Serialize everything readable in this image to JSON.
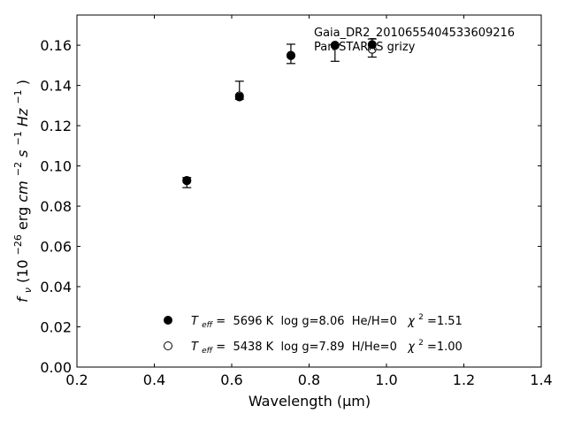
{
  "chart_data": {
    "type": "scatter",
    "title": "",
    "xlabel": "Wavelength (μm)",
    "ylabel_parts": {
      "f_main": "f",
      "f_sub": "ν",
      "open": " (10",
      "exp1": "−26",
      "erg": " erg ",
      "cm": "cm",
      "exp2": "−2",
      "s": " s",
      "exp3": "−1",
      "hz": " Hz",
      "exp4": "−1",
      "close": ")"
    },
    "xlim": [
      0.2,
      1.4
    ],
    "ylim": [
      0.0,
      0.175
    ],
    "xticks": [
      0.2,
      0.4,
      0.6,
      0.8,
      1.0,
      1.2,
      1.4
    ],
    "xtick_labels": [
      "0.2",
      "0.4",
      "0.6",
      "0.8",
      "1.0",
      "1.2",
      "1.4"
    ],
    "yticks": [
      0.0,
      0.02,
      0.04,
      0.06,
      0.08,
      0.1,
      0.12,
      0.14,
      0.16
    ],
    "ytick_labels": [
      "0.00",
      "0.02",
      "0.04",
      "0.06",
      "0.08",
      "0.10",
      "0.12",
      "0.14",
      "0.16"
    ],
    "grid": false,
    "annotation": {
      "line1": "Gaia_DR2_2010655404533609216",
      "line2": "Pan-STARRS grizy"
    },
    "observed": {
      "x": [
        0.484,
        0.62,
        0.753,
        0.867,
        0.963
      ],
      "y": [
        0.0917,
        0.1376,
        0.1557,
        0.1562,
        0.1586
      ],
      "err": [
        0.0025,
        0.0045,
        0.0048,
        0.0042,
        0.0045
      ]
    },
    "series": [
      {
        "marker": "filled",
        "x": [
          0.484,
          0.62,
          0.753,
          0.867,
          0.963
        ],
        "y": [
          0.0928,
          0.1343,
          0.155,
          0.16,
          0.1603
        ]
      },
      {
        "marker": "open",
        "x": [
          0.484,
          0.62,
          0.753,
          0.867,
          0.963
        ],
        "y": [
          0.0926,
          0.1348,
          0.1548,
          0.1599,
          0.158
        ]
      }
    ],
    "legend": {
      "location": "lower-center",
      "entries": [
        {
          "marker": "filled",
          "teff_T": "T",
          "teff_sub": "eff",
          "text1": "=  5696 K  log g=8.06  He/H=0  ",
          "chi": "χ",
          "chi_exp": "2",
          "text2": "=1.51"
        },
        {
          "marker": "open",
          "teff_T": "T",
          "teff_sub": "eff",
          "text1": "=  5438 K  log g=7.89  H/He=0  ",
          "chi": "χ",
          "chi_exp": "2",
          "text2": "=1.00"
        }
      ]
    }
  }
}
